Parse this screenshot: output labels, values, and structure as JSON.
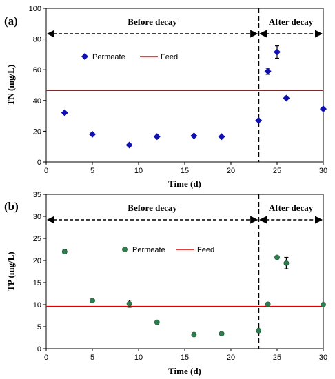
{
  "chart_data": [
    {
      "type": "scatter",
      "panel_label": "(a)",
      "xlabel": "Time (d)",
      "ylabel": "TN (mg/L)",
      "xlim": [
        0,
        30
      ],
      "ylim": [
        0,
        100
      ],
      "xticks": [
        0,
        5,
        10,
        15,
        20,
        25,
        30
      ],
      "yticks": [
        0,
        20,
        40,
        60,
        80,
        100
      ],
      "decay_day": 23,
      "regions": [
        {
          "label": "Before decay",
          "from": 0,
          "to": 23
        },
        {
          "label": "After decay",
          "from": 23,
          "to": 30
        }
      ],
      "series": [
        {
          "name": "Permeate",
          "marker": "diamond",
          "color": "#1010b0",
          "x": [
            2,
            5,
            9,
            12,
            16,
            19,
            23,
            24,
            25,
            26,
            30
          ],
          "y": [
            32,
            18,
            11,
            16.5,
            17,
            16.5,
            27,
            59,
            71.5,
            41.5,
            34.5
          ],
          "err": [
            0,
            0,
            0,
            0,
            0,
            0,
            0,
            2,
            4,
            0,
            0
          ]
        },
        {
          "name": "Feed",
          "type": "hline",
          "color": "#e00000",
          "y": 46.5
        }
      ],
      "legend_placement": "upper-left"
    },
    {
      "type": "scatter",
      "panel_label": "(b)",
      "xlabel": "Time (d)",
      "ylabel": "TP (mg/L)",
      "xlim": [
        0,
        30
      ],
      "ylim": [
        0,
        35
      ],
      "xticks": [
        0,
        5,
        10,
        15,
        20,
        25,
        30
      ],
      "yticks": [
        0,
        5,
        10,
        15,
        20,
        25,
        30,
        35
      ],
      "decay_day": 23,
      "regions": [
        {
          "label": "Before decay",
          "from": 0,
          "to": 23
        },
        {
          "label": "After decay",
          "from": 23,
          "to": 30
        }
      ],
      "series": [
        {
          "name": "Permeate",
          "marker": "circle",
          "color": "#2e7d4f",
          "x": [
            2,
            5,
            9,
            12,
            16,
            19,
            23,
            24,
            25,
            26,
            30
          ],
          "y": [
            22,
            10.9,
            10.2,
            6,
            3.2,
            3.4,
            4.1,
            10.1,
            20.7,
            19.4,
            10
          ],
          "err": [
            0.4,
            0,
            0.8,
            0,
            0,
            0,
            0,
            0,
            0,
            1.3,
            0
          ]
        },
        {
          "name": "Feed",
          "type": "hline",
          "color": "#e00000",
          "y": 9.6
        }
      ],
      "legend_placement": "upper-center"
    }
  ]
}
